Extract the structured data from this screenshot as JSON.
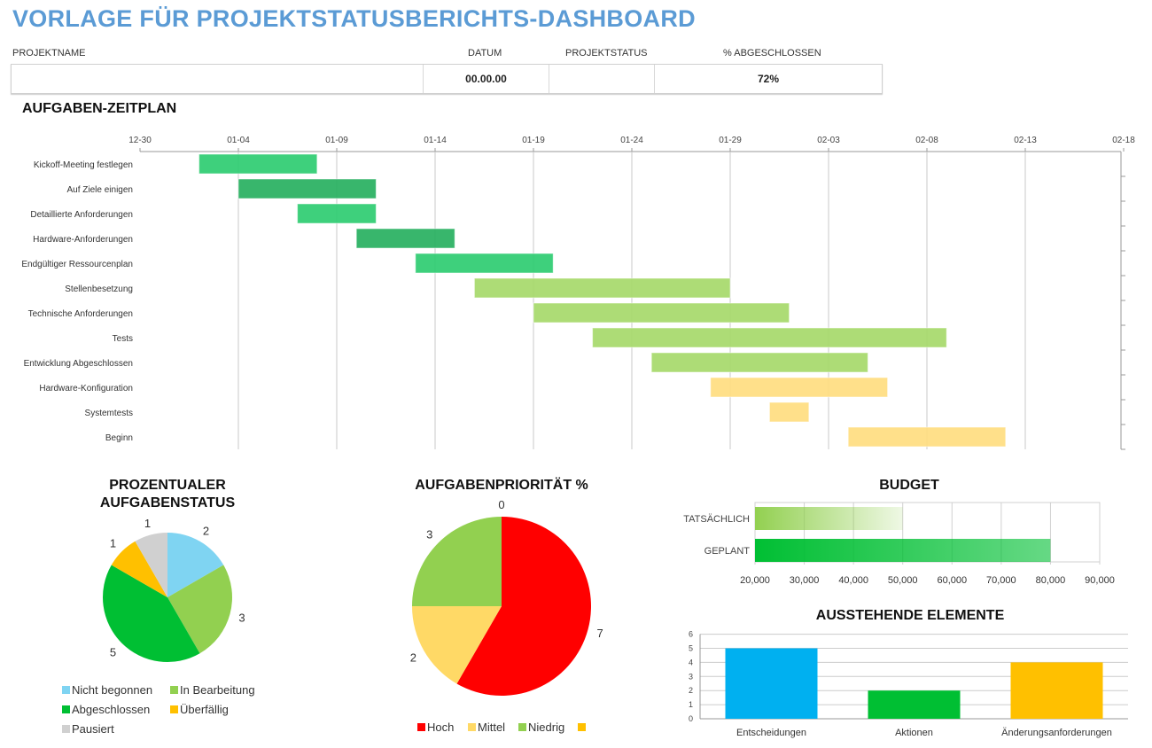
{
  "title": "VORLAGE FÜR PROJEKTSTATUSBERICHTS-DASHBOARD",
  "project_info": {
    "headers": {
      "name": "PROJEKTNAME",
      "date": "DATUM",
      "status": "PROJEKTSTATUS",
      "percent": "% ABGESCHLOSSEN"
    },
    "values": {
      "name": "",
      "date": "00.00.00",
      "status": "",
      "percent": "72%"
    }
  },
  "gantt_title": "AUFGABEN-ZEITPLAN",
  "chart_data": [
    {
      "type": "bar",
      "subtype": "gantt",
      "title": "",
      "x_ticks": [
        "12-30",
        "01-04",
        "01-09",
        "01-14",
        "01-19",
        "01-24",
        "01-29",
        "02-03",
        "02-08",
        "02-13",
        "02-18"
      ],
      "tasks": [
        {
          "name": "Kickoff-Meeting festlegen",
          "start": "01-02",
          "end": "01-08",
          "color": "#2ecc71"
        },
        {
          "name": "Auf Ziele einigen",
          "start": "01-04",
          "end": "01-11",
          "color": "#27b060"
        },
        {
          "name": "Detaillierte Anforderungen",
          "start": "01-07",
          "end": "01-11",
          "color": "#2ecc71"
        },
        {
          "name": "Hardware-Anforderungen",
          "start": "01-10",
          "end": "01-15",
          "color": "#27b060"
        },
        {
          "name": "Endgültiger Ressourcenplan",
          "start": "01-13",
          "end": "01-20",
          "color": "#2ecc71"
        },
        {
          "name": "Stellenbesetzung",
          "start": "01-16",
          "end": "01-29",
          "color": "#a6d96a"
        },
        {
          "name": "Technische Anforderungen",
          "start": "01-19",
          "end": "02-01",
          "color": "#a6d96a"
        },
        {
          "name": "Tests",
          "start": "01-22",
          "end": "02-09",
          "color": "#a6d96a"
        },
        {
          "name": "Entwicklung Abgeschlossen",
          "start": "01-25",
          "end": "02-05",
          "color": "#a6d96a"
        },
        {
          "name": "Hardware-Konfiguration",
          "start": "01-28",
          "end": "02-06",
          "color": "#ffdd80"
        },
        {
          "name": "Systemtests",
          "start": "01-31",
          "end": "02-02",
          "color": "#ffdd80"
        },
        {
          "name": "Beginn",
          "start": "02-04",
          "end": "02-12",
          "color": "#ffdd80"
        }
      ],
      "grid": true
    },
    {
      "type": "pie",
      "title": "PROZENTUALER AUFGABENSTATUS",
      "slices": [
        {
          "label": "Nicht begonnen",
          "value": 2,
          "color": "#7fd4f2"
        },
        {
          "label": "In Bearbeitung",
          "value": 3,
          "color": "#92d050"
        },
        {
          "label": "Abgeschlossen",
          "value": 5,
          "color": "#00bf33"
        },
        {
          "label": "Überfällig",
          "value": 1,
          "color": "#ffc000"
        },
        {
          "label": "Pausiert",
          "value": 1,
          "color": "#d0d0d0"
        }
      ],
      "legend": "bottom"
    },
    {
      "type": "pie",
      "title": "AUFGABENPRIORITÄT %",
      "slices": [
        {
          "label": "Hoch",
          "value": 7,
          "color": "#ff0000"
        },
        {
          "label": "Mittel",
          "value": 2,
          "color": "#ffd966"
        },
        {
          "label": "Niedrig",
          "value": 3,
          "color": "#92d050"
        },
        {
          "label": "",
          "value": 0,
          "color": "#ffc000"
        }
      ],
      "legend": "bottom"
    },
    {
      "type": "bar",
      "orientation": "horizontal",
      "title": "BUDGET",
      "categories": [
        "TATSÄCHLICH",
        "GEPLANT"
      ],
      "values": [
        50000,
        80000
      ],
      "colors": [
        "#92d050",
        "#00bf33"
      ],
      "xlim": [
        20000,
        90000
      ],
      "x_ticks": [
        "20,000",
        "30,000",
        "40,000",
        "50,000",
        "60,000",
        "70,000",
        "80,000",
        "90,000"
      ],
      "grid": true
    },
    {
      "type": "bar",
      "title": "AUSSTEHENDE ELEMENTE",
      "categories": [
        "Entscheidungen",
        "Aktionen",
        "Änderungsanforderungen"
      ],
      "values": [
        5,
        2,
        4
      ],
      "colors": [
        "#00b0f0",
        "#00bf33",
        "#ffc000"
      ],
      "ylim": [
        0,
        6
      ],
      "y_ticks": [
        "0",
        "1",
        "2",
        "3",
        "4",
        "5",
        "6"
      ],
      "grid": true
    }
  ]
}
